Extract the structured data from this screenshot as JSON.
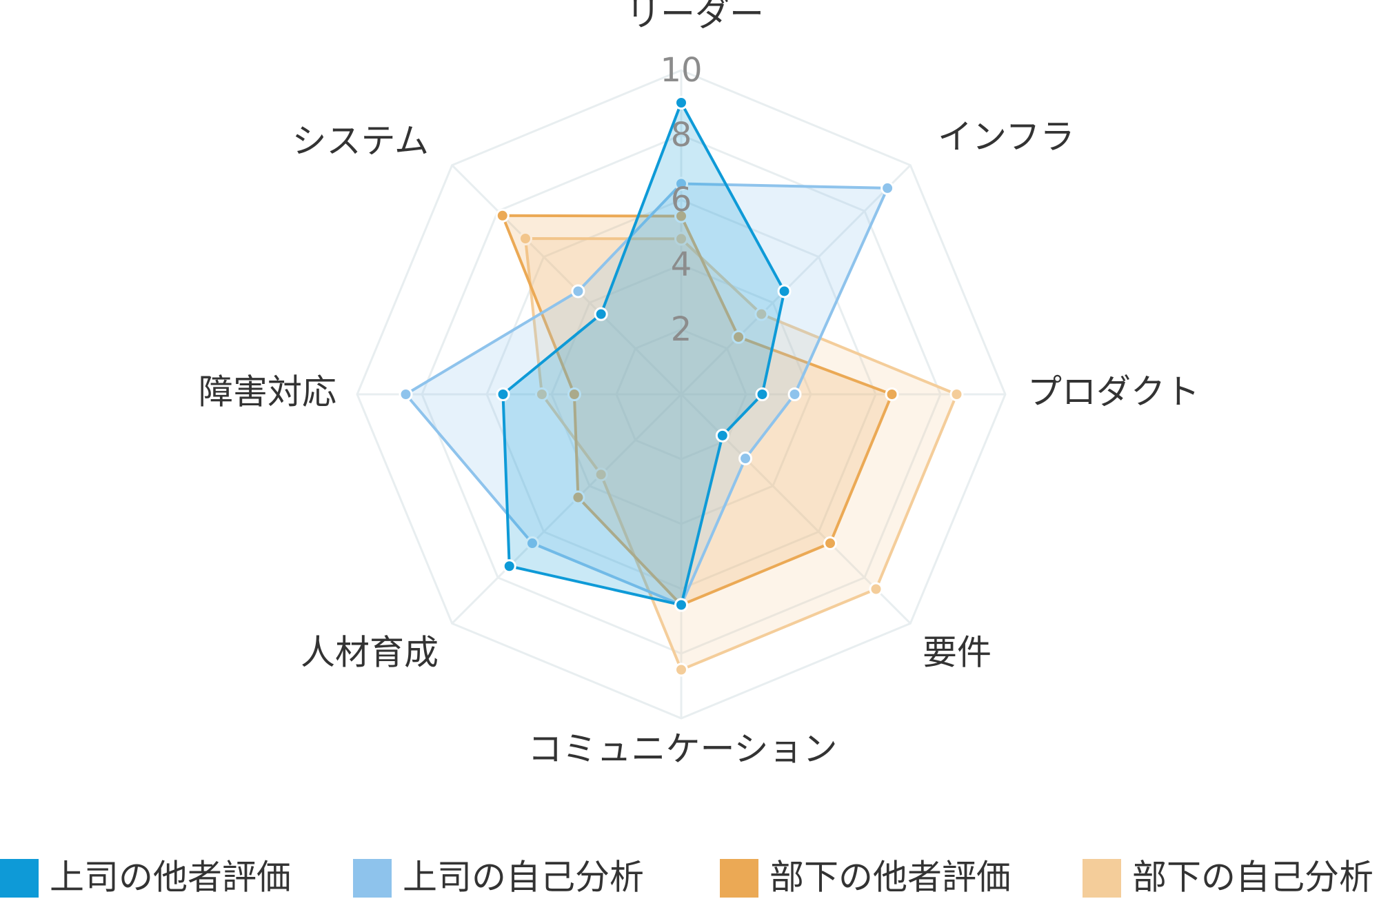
{
  "chart_data": {
    "type": "radar",
    "axes": [
      "リーダー",
      "インフラ",
      "プロダクト",
      "要件",
      "コミュニケーション",
      "人材育成",
      "障害対応",
      "システム"
    ],
    "r_range": [
      0,
      10
    ],
    "ticks": [
      "2",
      "4",
      "6",
      "8",
      "10"
    ],
    "tick_values": [
      2,
      4,
      6,
      8,
      10
    ],
    "grid": true,
    "legend_position": "bottom",
    "series": [
      {
        "name": "上司の他者評価",
        "color": "#0e9ad7",
        "values": [
          9,
          4.5,
          2.5,
          1.8,
          6.5,
          7.5,
          5.5,
          3.5
        ]
      },
      {
        "name": "上司の自己分析",
        "color": "#8ec3ec",
        "values": [
          6.5,
          9,
          3.5,
          2.8,
          6.5,
          6.5,
          8.5,
          4.5
        ]
      },
      {
        "name": "部下の他者評価",
        "color": "#eba955",
        "values": [
          5.5,
          2.5,
          6.5,
          6.5,
          6.5,
          4.5,
          3.3,
          7.8
        ]
      },
      {
        "name": "部下の自己分析",
        "color": "#f4cd9a",
        "values": [
          4.8,
          3.5,
          8.5,
          8.5,
          8.5,
          3.5,
          4.3,
          6.8
        ]
      }
    ]
  }
}
